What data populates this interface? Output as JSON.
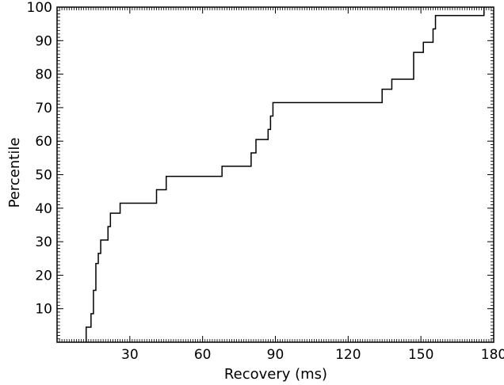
{
  "chart_data": {
    "type": "line",
    "style": "step-cdf",
    "xlabel": "Recovery (ms)",
    "ylabel": "Percentile",
    "xlim": [
      0,
      180
    ],
    "ylim": [
      0,
      100
    ],
    "xticks": [
      30,
      60,
      90,
      120,
      150,
      180
    ],
    "yticks": [
      10,
      20,
      30,
      40,
      50,
      60,
      70,
      80,
      90,
      100
    ],
    "minor_tick_step_x": 1,
    "minor_tick_step_y": 1,
    "grid": false,
    "legend": "none",
    "series": [
      {
        "color": "#000000",
        "points": [
          [
            12,
            0
          ],
          [
            12,
            4.5
          ],
          [
            14,
            4.5
          ],
          [
            14,
            8.5
          ],
          [
            15,
            8.5
          ],
          [
            15,
            15.5
          ],
          [
            16,
            15.5
          ],
          [
            16,
            23.5
          ],
          [
            17,
            23.5
          ],
          [
            17,
            26.5
          ],
          [
            18,
            26.5
          ],
          [
            18,
            30.5
          ],
          [
            21,
            30.5
          ],
          [
            21,
            34.5
          ],
          [
            22,
            34.5
          ],
          [
            22,
            38.5
          ],
          [
            26,
            38.5
          ],
          [
            26,
            41.5
          ],
          [
            41,
            41.5
          ],
          [
            41,
            45.5
          ],
          [
            45,
            45.5
          ],
          [
            45,
            49.5
          ],
          [
            68,
            49.5
          ],
          [
            68,
            52.5
          ],
          [
            80,
            52.5
          ],
          [
            80,
            56.5
          ],
          [
            82,
            56.5
          ],
          [
            82,
            60.5
          ],
          [
            87,
            60.5
          ],
          [
            87,
            63.5
          ],
          [
            88,
            63.5
          ],
          [
            88,
            67.5
          ],
          [
            89,
            67.5
          ],
          [
            89,
            71.5
          ],
          [
            134,
            71.5
          ],
          [
            134,
            75.5
          ],
          [
            138,
            75.5
          ],
          [
            138,
            78.5
          ],
          [
            147,
            78.5
          ],
          [
            147,
            86.5
          ],
          [
            151,
            86.5
          ],
          [
            151,
            89.5
          ],
          [
            155,
            89.5
          ],
          [
            155,
            93.5
          ],
          [
            156,
            93.5
          ],
          [
            156,
            97.5
          ],
          [
            176,
            97.5
          ],
          [
            176,
            100
          ]
        ]
      }
    ]
  }
}
